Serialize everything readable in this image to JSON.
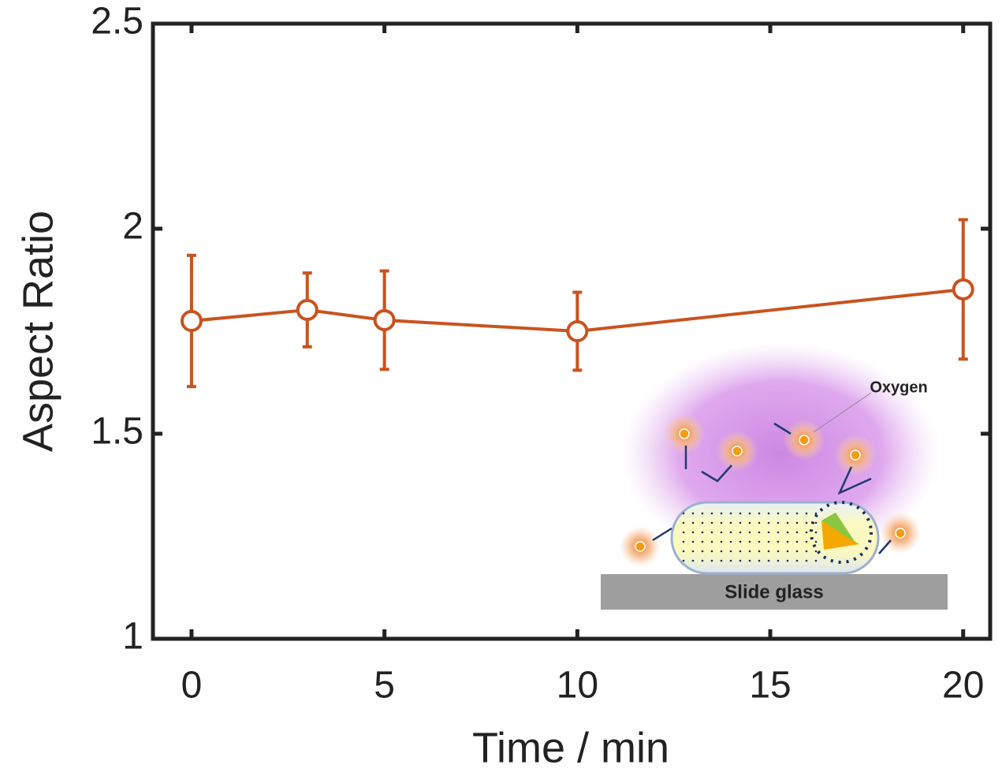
{
  "chart_data": {
    "type": "line",
    "x": [
      0,
      3,
      5,
      10,
      20
    ],
    "series": [
      {
        "color": "#c9531f",
        "values": [
          1.775,
          1.802,
          1.777,
          1.75,
          1.852
        ],
        "errors": [
          0.16,
          0.09,
          0.12,
          0.095,
          0.17
        ]
      }
    ],
    "xlabel": "Time / min",
    "ylabel": "Aspect Ratio",
    "xlim": [
      -1,
      20.7
    ],
    "ylim": [
      1,
      2.5
    ],
    "xticks": [
      0,
      5,
      10,
      15,
      20
    ],
    "yticks": [
      1,
      1.5,
      2,
      2.5
    ],
    "inset_labels": [
      "Oxygen",
      "Slide glass"
    ]
  }
}
